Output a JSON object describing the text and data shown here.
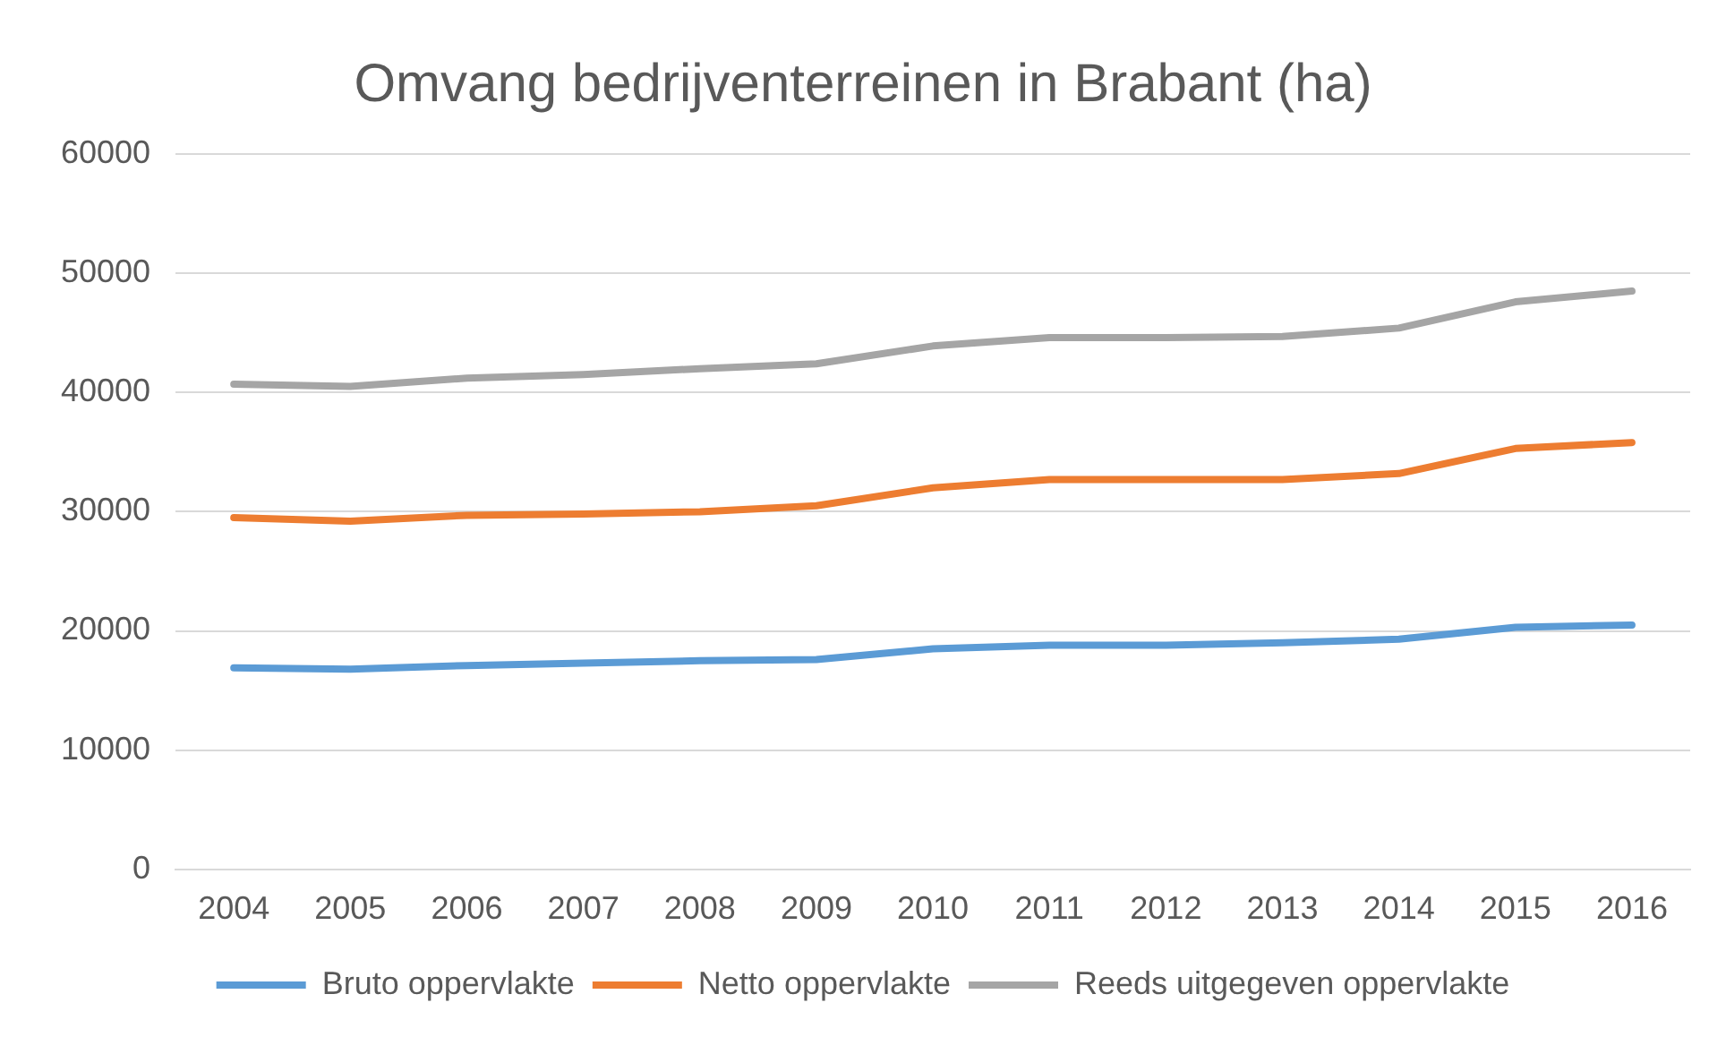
{
  "chart_data": {
    "type": "line",
    "title": "Omvang bedrijventerreinen in Brabant (ha)",
    "categories": [
      "2004",
      "2005",
      "2006",
      "2007",
      "2008",
      "2009",
      "2010",
      "2011",
      "2012",
      "2013",
      "2014",
      "2015",
      "2016"
    ],
    "series": [
      {
        "name": "Bruto oppervlakte",
        "color": "#5b9bd5",
        "values": [
          16900,
          16800,
          17100,
          17300,
          17500,
          17600,
          18500,
          18800,
          18800,
          19000,
          19300,
          20300,
          20500
        ]
      },
      {
        "name": "Netto oppervlakte",
        "color": "#ed7d31",
        "values": [
          29500,
          29200,
          29700,
          29800,
          30000,
          30500,
          32000,
          32700,
          32700,
          32700,
          33200,
          35300,
          35800
        ]
      },
      {
        "name": "Reeds uitgegeven oppervlakte",
        "color": "#a5a5a5",
        "values": [
          40700,
          40500,
          41200,
          41500,
          42000,
          42400,
          43900,
          44600,
          44600,
          44700,
          45400,
          47600,
          48500
        ]
      }
    ],
    "ylim": [
      0,
      60000
    ],
    "yticks": [
      0,
      10000,
      20000,
      30000,
      40000,
      50000,
      60000
    ],
    "grid": "y",
    "legend": "bottom",
    "marker": "none",
    "line_style": "solid"
  }
}
